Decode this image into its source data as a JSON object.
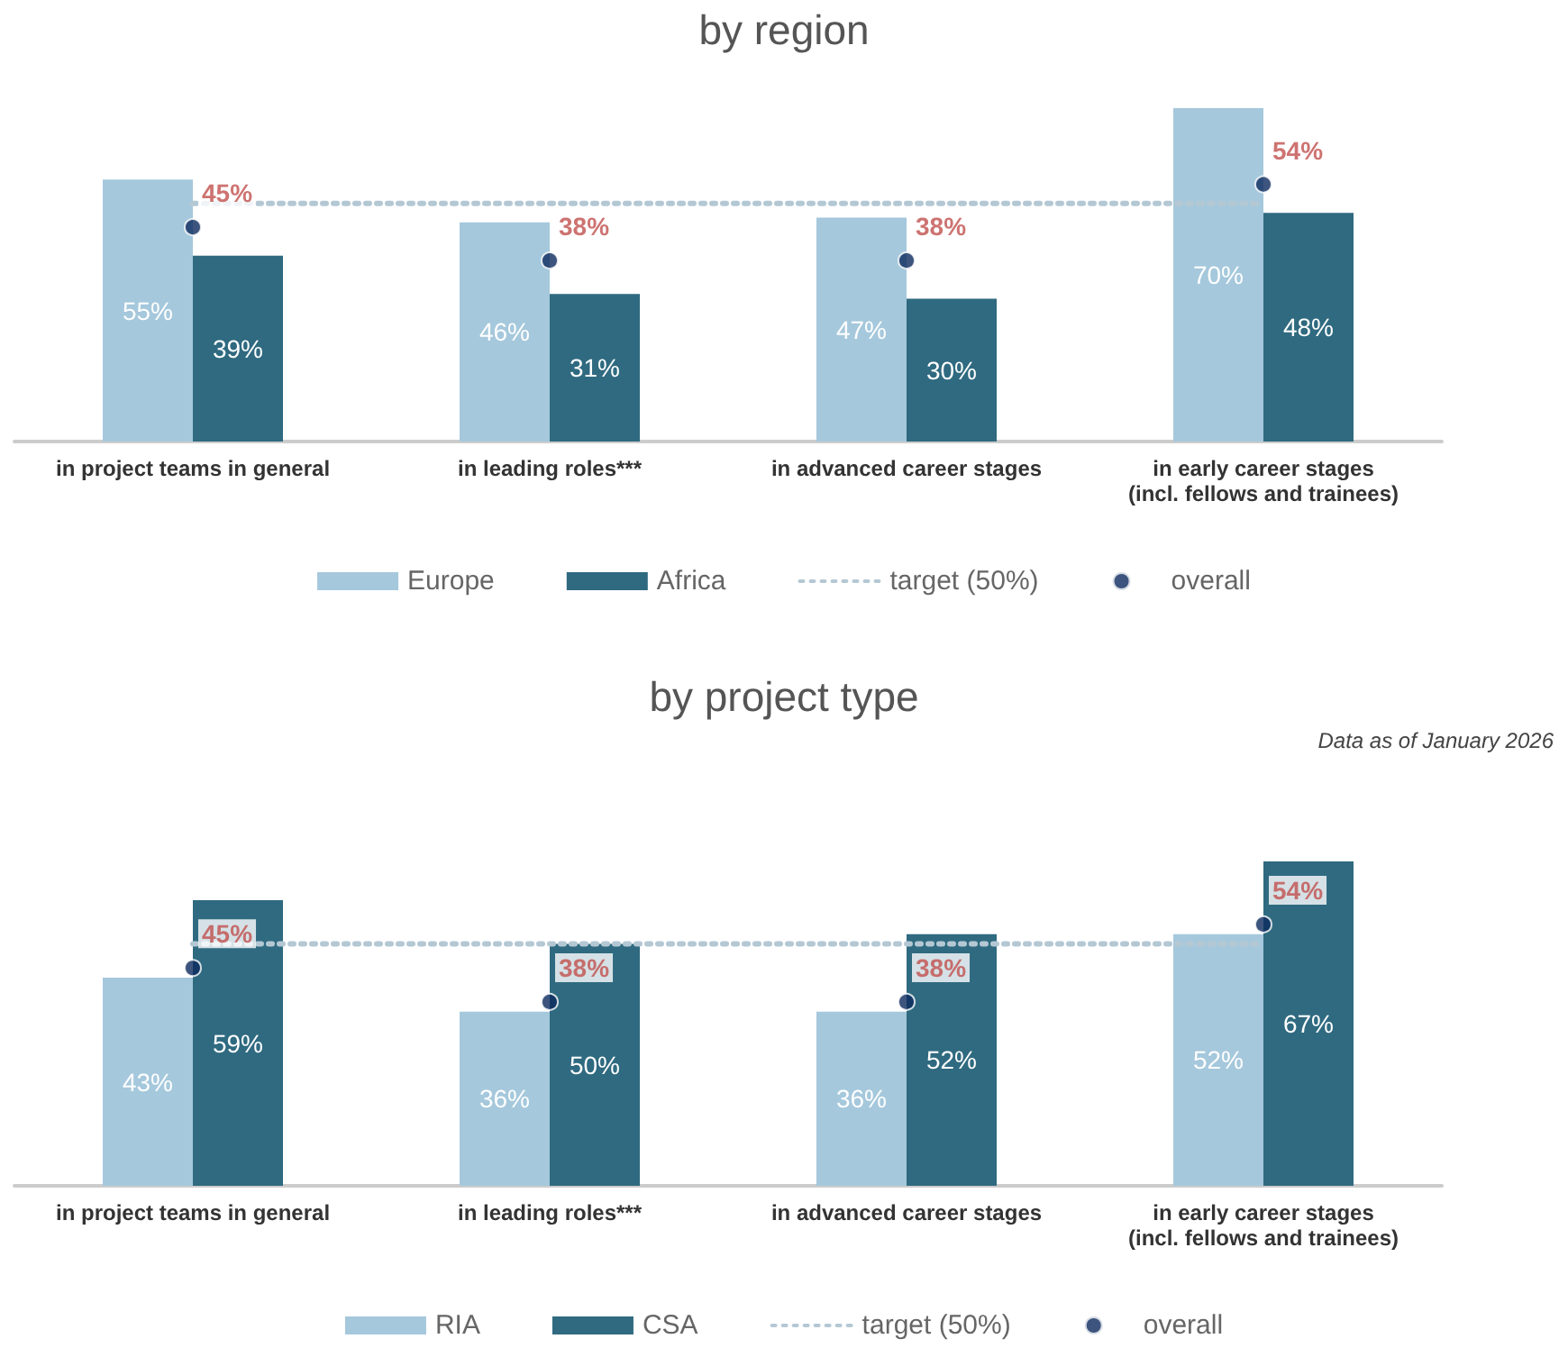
{
  "chart_data": [
    {
      "type": "bar",
      "title": "by region",
      "categories": [
        "in project teams in general",
        "in leading roles***",
        "in advanced career stages",
        "in early career stages\n(incl. fellows and trainees)"
      ],
      "series": [
        {
          "name": "Europe",
          "color": "#a5c8dc",
          "values": [
            55,
            46,
            47,
            70
          ],
          "value_labels": [
            "55%",
            "46%",
            "47%",
            "70%"
          ]
        },
        {
          "name": "Africa",
          "color": "#2f6a80",
          "values": [
            39,
            31,
            30,
            48
          ],
          "value_labels": [
            "39%",
            "31%",
            "30%",
            "48%"
          ]
        },
        {
          "name": "overall",
          "type": "scatter",
          "color": "#0d2b5e",
          "x": [
            "in project teams in general",
            "in leading roles***",
            "in advanced career stages",
            "in early career stages\n(incl. fellows and trainees)"
          ],
          "values": [
            45,
            38,
            38,
            54
          ],
          "value_labels": [
            "45%",
            "38%",
            "38%",
            "54%"
          ]
        }
      ],
      "ref_lines": [
        {
          "axis": "y",
          "value": 50,
          "label": "target (50%)",
          "color": "#b4c8d4",
          "line_style": "dotted"
        }
      ],
      "legend": "bottom",
      "tick_labels": "x"
    },
    {
      "type": "bar",
      "title": "by project type",
      "annotations": [
        "Data as of January 2026"
      ],
      "categories": [
        "in project teams in general",
        "in leading roles***",
        "in advanced career stages",
        "in early career stages\n(incl. fellows and trainees)"
      ],
      "series": [
        {
          "name": "RIA",
          "color": "#a5c8dc",
          "values": [
            43,
            36,
            36,
            52
          ],
          "value_labels": [
            "43%",
            "36%",
            "36%",
            "52%"
          ]
        },
        {
          "name": "CSA",
          "color": "#2f6a80",
          "values": [
            59,
            50,
            52,
            67
          ],
          "value_labels": [
            "59%",
            "50%",
            "52%",
            "67%"
          ]
        },
        {
          "name": "overall",
          "type": "scatter",
          "color": "#0d2b5e",
          "x": [
            "in project teams in general",
            "in leading roles***",
            "in advanced career stages",
            "in early career stages\n(incl. fellows and trainees)"
          ],
          "values": [
            45,
            38,
            38,
            54
          ],
          "value_labels": [
            "45%",
            "38%",
            "38%",
            "54%"
          ]
        }
      ],
      "ref_lines": [
        {
          "axis": "y",
          "value": 50,
          "label": "target (50%)",
          "color": "#b4c8d4",
          "line_style": "dotted"
        }
      ],
      "legend": "bottom",
      "tick_labels": "x"
    }
  ]
}
